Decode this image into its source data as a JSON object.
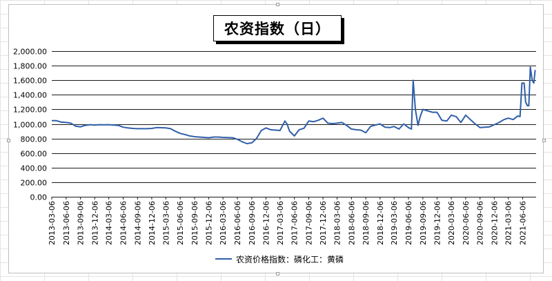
{
  "chart_data": {
    "type": "line",
    "title": "农资指数（日）",
    "xlabel": "",
    "ylabel": "",
    "ylim": [
      0,
      2000
    ],
    "y_ticks": [
      "0.00",
      "200.00",
      "400.00",
      "600.00",
      "800.00",
      "1,000.00",
      "1,200.00",
      "1,400.00",
      "1,600.00",
      "1,800.00",
      "2,000.00"
    ],
    "x_ticks": [
      "2013-03-06",
      "2013-06-06",
      "2013-09-06",
      "2013-12-06",
      "2014-03-06",
      "2014-06-06",
      "2014-09-06",
      "2014-12-06",
      "2015-03-06",
      "2015-06-06",
      "2015-09-06",
      "2015-12-06",
      "2016-03-06",
      "2016-06-06",
      "2016-09-06",
      "2016-12-06",
      "2017-03-06",
      "2017-06-06",
      "2017-09-06",
      "2017-12-06",
      "2018-03-06",
      "2018-06-06",
      "2018-09-06",
      "2018-12-06",
      "2019-03-06",
      "2019-06-06",
      "2019-09-06",
      "2019-12-06",
      "2020-03-06",
      "2020-06-06",
      "2020-09-06",
      "2020-12-06",
      "2021-03-06",
      "2021-06-06"
    ],
    "grid": true,
    "legend_position": "bottom",
    "series": [
      {
        "name": "农资价格指数：磷化工：黄磷",
        "color": "#2e5ea8",
        "points": [
          [
            "2013-03-06",
            1045
          ],
          [
            "2013-04-06",
            1045
          ],
          [
            "2013-05-06",
            1025
          ],
          [
            "2013-06-06",
            1020
          ],
          [
            "2013-07-06",
            1010
          ],
          [
            "2013-08-06",
            970
          ],
          [
            "2013-09-06",
            960
          ],
          [
            "2013-10-06",
            980
          ],
          [
            "2013-11-06",
            990
          ],
          [
            "2013-12-06",
            985
          ],
          [
            "2014-01-06",
            990
          ],
          [
            "2014-02-06",
            988
          ],
          [
            "2014-03-06",
            990
          ],
          [
            "2014-04-06",
            985
          ],
          [
            "2014-05-06",
            980
          ],
          [
            "2014-06-06",
            955
          ],
          [
            "2014-07-06",
            945
          ],
          [
            "2014-08-06",
            938
          ],
          [
            "2014-09-06",
            935
          ],
          [
            "2014-10-06",
            935
          ],
          [
            "2014-11-06",
            935
          ],
          [
            "2014-12-06",
            938
          ],
          [
            "2015-01-06",
            950
          ],
          [
            "2015-02-06",
            948
          ],
          [
            "2015-03-06",
            945
          ],
          [
            "2015-04-06",
            935
          ],
          [
            "2015-05-06",
            900
          ],
          [
            "2015-06-06",
            870
          ],
          [
            "2015-07-06",
            855
          ],
          [
            "2015-08-06",
            835
          ],
          [
            "2015-09-06",
            825
          ],
          [
            "2015-10-06",
            820
          ],
          [
            "2015-11-06",
            815
          ],
          [
            "2015-12-06",
            810
          ],
          [
            "2016-01-06",
            820
          ],
          [
            "2016-02-06",
            820
          ],
          [
            "2016-03-06",
            815
          ],
          [
            "2016-04-06",
            812
          ],
          [
            "2016-05-06",
            810
          ],
          [
            "2016-06-06",
            790
          ],
          [
            "2016-07-06",
            755
          ],
          [
            "2016-08-06",
            730
          ],
          [
            "2016-09-06",
            740
          ],
          [
            "2016-10-06",
            800
          ],
          [
            "2016-11-06",
            910
          ],
          [
            "2016-12-06",
            945
          ],
          [
            "2017-01-06",
            920
          ],
          [
            "2017-02-06",
            915
          ],
          [
            "2017-03-06",
            910
          ],
          [
            "2017-04-06",
            1040
          ],
          [
            "2017-04-20",
            1000
          ],
          [
            "2017-05-06",
            900
          ],
          [
            "2017-06-06",
            835
          ],
          [
            "2017-07-06",
            920
          ],
          [
            "2017-08-06",
            940
          ],
          [
            "2017-09-06",
            1040
          ],
          [
            "2017-10-06",
            1030
          ],
          [
            "2017-11-06",
            1050
          ],
          [
            "2017-12-06",
            1080
          ],
          [
            "2018-01-06",
            1010
          ],
          [
            "2018-02-06",
            1005
          ],
          [
            "2018-03-06",
            1010
          ],
          [
            "2018-04-06",
            1020
          ],
          [
            "2018-05-06",
            980
          ],
          [
            "2018-06-06",
            930
          ],
          [
            "2018-07-06",
            920
          ],
          [
            "2018-08-06",
            915
          ],
          [
            "2018-09-06",
            880
          ],
          [
            "2018-10-06",
            965
          ],
          [
            "2018-11-06",
            985
          ],
          [
            "2018-12-06",
            1000
          ],
          [
            "2019-01-06",
            955
          ],
          [
            "2019-02-06",
            950
          ],
          [
            "2019-03-06",
            965
          ],
          [
            "2019-04-06",
            930
          ],
          [
            "2019-05-06",
            1000
          ],
          [
            "2019-06-06",
            950
          ],
          [
            "2019-06-25",
            930
          ],
          [
            "2019-07-06",
            1600
          ],
          [
            "2019-07-20",
            1200
          ],
          [
            "2019-08-06",
            980
          ],
          [
            "2019-08-20",
            1100
          ],
          [
            "2019-09-06",
            1200
          ],
          [
            "2019-10-06",
            1180
          ],
          [
            "2019-11-06",
            1160
          ],
          [
            "2019-12-06",
            1160
          ],
          [
            "2020-01-06",
            1050
          ],
          [
            "2020-02-06",
            1040
          ],
          [
            "2020-03-06",
            1120
          ],
          [
            "2020-04-06",
            1100
          ],
          [
            "2020-05-06",
            1020
          ],
          [
            "2020-06-06",
            1120
          ],
          [
            "2020-07-06",
            1060
          ],
          [
            "2020-08-06",
            1000
          ],
          [
            "2020-09-06",
            950
          ],
          [
            "2020-10-06",
            955
          ],
          [
            "2020-11-06",
            960
          ],
          [
            "2020-12-06",
            990
          ],
          [
            "2021-01-06",
            1020
          ],
          [
            "2021-02-06",
            1060
          ],
          [
            "2021-03-06",
            1080
          ],
          [
            "2021-04-06",
            1060
          ],
          [
            "2021-05-06",
            1110
          ],
          [
            "2021-05-20",
            1100
          ],
          [
            "2021-06-01",
            1560
          ],
          [
            "2021-06-15",
            1560
          ],
          [
            "2021-06-25",
            1300
          ],
          [
            "2021-07-06",
            1250
          ],
          [
            "2021-07-15",
            1250
          ],
          [
            "2021-07-25",
            1780
          ],
          [
            "2021-08-06",
            1600
          ],
          [
            "2021-08-16",
            1560
          ],
          [
            "2021-08-25",
            1740
          ]
        ]
      }
    ]
  }
}
